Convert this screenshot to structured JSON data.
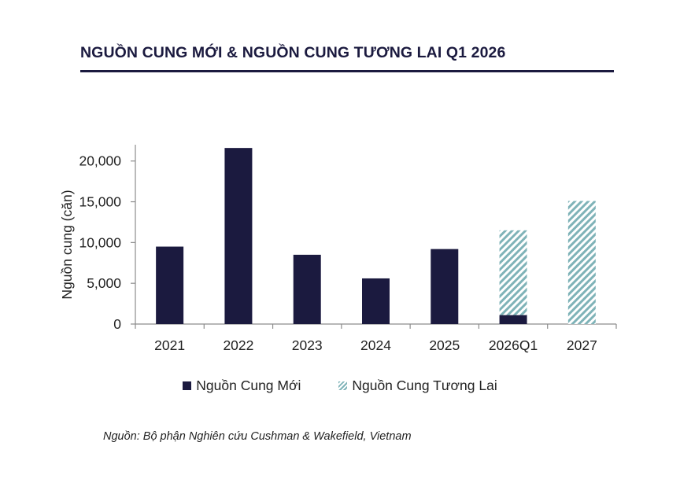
{
  "title": "NGUỒN CUNG MỚI & NGUỒN CUNG TƯƠNG LAI Q1 2026",
  "source": "Nguồn: Bộ phận Nghiên cứu Cushman & Wakefield, Vietnam",
  "chart_data": {
    "type": "bar",
    "stacked": true,
    "categories": [
      "2021",
      "2022",
      "2023",
      "2024",
      "2025",
      "2026Q1",
      "2027"
    ],
    "series": [
      {
        "name": "Nguồn Cung Mới",
        "color": "#1b1a3f",
        "pattern": "solid",
        "values": [
          9500,
          21600,
          8500,
          5600,
          9200,
          1100,
          0
        ]
      },
      {
        "name": "Nguồn Cung Tương Lai",
        "color": "#7fb3b8",
        "pattern": "hatch",
        "values": [
          0,
          0,
          0,
          0,
          0,
          10400,
          15100
        ]
      }
    ],
    "ylabel": "Nguồn cung (căn)",
    "xlabel": "",
    "ylim": [
      0,
      22000
    ],
    "yticks": [
      "0",
      "5,000",
      "10,000",
      "15,000",
      "20,000"
    ],
    "ytick_values": [
      0,
      5000,
      10000,
      15000,
      20000
    ],
    "legend_position": "bottom",
    "grid": false
  }
}
